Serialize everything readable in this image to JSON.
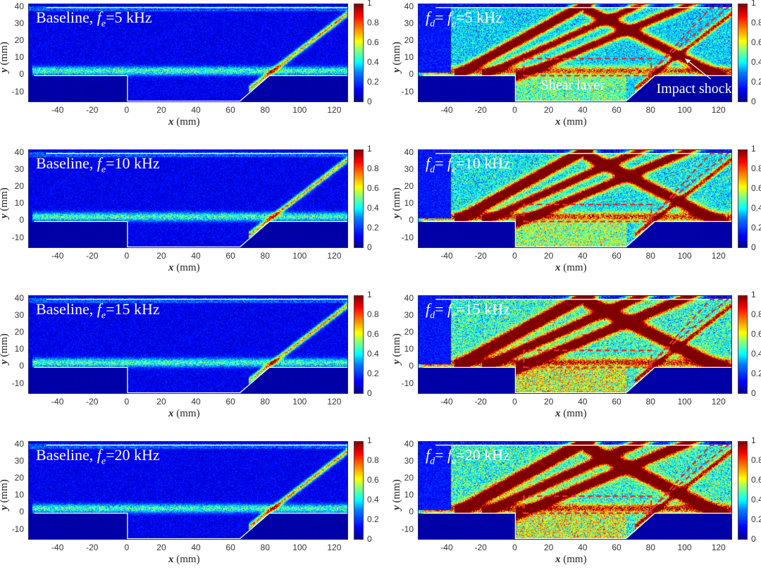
{
  "figure": {
    "colormap": "jet",
    "axis_colors": {
      "tick_text": "#333333",
      "geometry_line": "#ffffff",
      "box_line": "#e03030"
    }
  },
  "chart_data": [
    {
      "type": "heatmap",
      "id": "baseline-5",
      "title": "Baseline, f_e=5 kHz",
      "label_prefix": "Baseline, ",
      "label_var": "f",
      "label_sub": "e",
      "label_suffix": "=5 kHz",
      "variant": "baseline",
      "intensity": 0.35,
      "xlabel": "x (mm)",
      "ylabel": "y (mm)",
      "xlim": [
        -57,
        128
      ],
      "ylim": [
        -16,
        42
      ],
      "xticks": [
        -40,
        -20,
        0,
        20,
        40,
        60,
        80,
        100,
        120
      ],
      "yticks": [
        40,
        30,
        20,
        10,
        0,
        -10
      ],
      "colorbar": {
        "range": [
          0,
          1
        ],
        "ticks": [
          1,
          0.8,
          0.6,
          0.4,
          0.2,
          0
        ]
      }
    },
    {
      "type": "heatmap",
      "id": "forced-5",
      "title": "f_d = f_e=5 kHz",
      "label_prefix": "",
      "label_var": "f",
      "label_sub": "d",
      "label_suffix": "=5 kHz",
      "forced": true,
      "variant": "forced",
      "intensity": 0.75,
      "xlabel": "x (mm)",
      "ylabel": "y (mm)",
      "xlim": [
        -57,
        128
      ],
      "ylim": [
        -16,
        42
      ],
      "xticks": [
        -40,
        -20,
        0,
        20,
        40,
        60,
        80,
        100,
        120
      ],
      "yticks": [
        40,
        30,
        20,
        10,
        0,
        -10
      ],
      "colorbar": {
        "range": [
          0,
          1
        ],
        "ticks": [
          1,
          0.8,
          0.6,
          0.4,
          0.2,
          0
        ]
      },
      "annotations": [
        {
          "text": "Shear layer"
        },
        {
          "text": "Impact shock"
        }
      ]
    },
    {
      "type": "heatmap",
      "id": "baseline-10",
      "title": "Baseline, f_e=10 kHz",
      "label_prefix": "Baseline, ",
      "label_var": "f",
      "label_sub": "e",
      "label_suffix": "=10 kHz",
      "variant": "baseline",
      "intensity": 0.35,
      "xlabel": "x (mm)",
      "ylabel": "y (mm)",
      "xlim": [
        -57,
        128
      ],
      "ylim": [
        -16,
        42
      ],
      "xticks": [
        -40,
        -20,
        0,
        20,
        40,
        60,
        80,
        100,
        120
      ],
      "yticks": [
        40,
        30,
        20,
        10,
        0,
        -10
      ],
      "colorbar": {
        "range": [
          0,
          1
        ],
        "ticks": [
          1,
          0.8,
          0.6,
          0.4,
          0.2,
          0
        ]
      }
    },
    {
      "type": "heatmap",
      "id": "forced-10",
      "title": "f_d = f_e=10 kHz",
      "label_prefix": "",
      "label_var": "f",
      "label_sub": "d",
      "label_suffix": "=10 kHz",
      "forced": true,
      "variant": "forced",
      "intensity": 0.85,
      "xlabel": "x (mm)",
      "ylabel": "y (mm)",
      "xlim": [
        -57,
        128
      ],
      "ylim": [
        -16,
        42
      ],
      "xticks": [
        -40,
        -20,
        0,
        20,
        40,
        60,
        80,
        100,
        120
      ],
      "yticks": [
        40,
        30,
        20,
        10,
        0,
        -10
      ],
      "colorbar": {
        "range": [
          0,
          1
        ],
        "ticks": [
          1,
          0.8,
          0.6,
          0.4,
          0.2,
          0
        ]
      }
    },
    {
      "type": "heatmap",
      "id": "baseline-15",
      "title": "Baseline, f_e=15 kHz",
      "label_prefix": "Baseline, ",
      "label_var": "f",
      "label_sub": "e",
      "label_suffix": "=15 kHz",
      "variant": "baseline",
      "intensity": 0.3,
      "xlabel": "x (mm)",
      "ylabel": "y (mm)",
      "xlim": [
        -57,
        128
      ],
      "ylim": [
        -16,
        42
      ],
      "xticks": [
        -40,
        -20,
        0,
        20,
        40,
        60,
        80,
        100,
        120
      ],
      "yticks": [
        40,
        30,
        20,
        10,
        0,
        -10
      ],
      "colorbar": {
        "range": [
          0,
          1
        ],
        "ticks": [
          1,
          0.8,
          0.6,
          0.4,
          0.2,
          0
        ]
      }
    },
    {
      "type": "heatmap",
      "id": "forced-15",
      "title": "f_d = f_e=15 kHz",
      "label_prefix": "",
      "label_var": "f",
      "label_sub": "d",
      "label_suffix": "=15 kHz",
      "forced": true,
      "variant": "forced",
      "intensity": 1.0,
      "xlabel": "x (mm)",
      "ylabel": "y (mm)",
      "xlim": [
        -57,
        128
      ],
      "ylim": [
        -16,
        42
      ],
      "xticks": [
        -40,
        -20,
        0,
        20,
        40,
        60,
        80,
        100,
        120
      ],
      "yticks": [
        40,
        30,
        20,
        10,
        0,
        -10
      ],
      "colorbar": {
        "range": [
          0,
          1
        ],
        "ticks": [
          1,
          0.8,
          0.6,
          0.4,
          0.2,
          0
        ]
      }
    },
    {
      "type": "heatmap",
      "id": "baseline-20",
      "title": "Baseline, f_e=20 kHz",
      "label_prefix": "Baseline, ",
      "label_var": "f",
      "label_sub": "e",
      "label_suffix": "=20 kHz",
      "variant": "baseline",
      "intensity": 0.3,
      "xlabel": "x (mm)",
      "ylabel": "y (mm)",
      "xlim": [
        -57,
        128
      ],
      "ylim": [
        -16,
        42
      ],
      "xticks": [
        -40,
        -20,
        0,
        20,
        40,
        60,
        80,
        100,
        120
      ],
      "yticks": [
        40,
        30,
        20,
        10,
        0,
        -10
      ],
      "colorbar": {
        "range": [
          0,
          1
        ],
        "ticks": [
          1,
          0.8,
          0.6,
          0.4,
          0.2,
          0
        ]
      }
    },
    {
      "type": "heatmap",
      "id": "forced-20",
      "title": "f_d = f_e=20 kHz",
      "label_prefix": "",
      "label_var": "f",
      "label_sub": "d",
      "label_suffix": "=20 kHz",
      "forced": true,
      "variant": "forced",
      "intensity": 1.0,
      "xlabel": "x (mm)",
      "ylabel": "y (mm)",
      "xlim": [
        -57,
        128
      ],
      "ylim": [
        -16,
        42
      ],
      "xticks": [
        -40,
        -20,
        0,
        20,
        40,
        60,
        80,
        100,
        120
      ],
      "yticks": [
        40,
        30,
        20,
        10,
        0,
        -10
      ],
      "colorbar": {
        "range": [
          0,
          1
        ],
        "ticks": [
          1,
          0.8,
          0.6,
          0.4,
          0.2,
          0
        ]
      }
    }
  ],
  "geometry": {
    "wall_outline_mm": [
      [
        -54,
        0
      ],
      [
        0,
        0
      ],
      [
        0,
        -15
      ],
      [
        65,
        -15
      ],
      [
        82,
        0
      ],
      [
        128,
        0
      ]
    ],
    "top_wall_mm": [
      [
        -47,
        40
      ],
      [
        128,
        40
      ]
    ],
    "shear_box_mm": [
      [
        5,
        0
      ],
      [
        80,
        0
      ],
      [
        80,
        10
      ],
      [
        5,
        10
      ]
    ],
    "impact_box_mm": [
      [
        78,
        0
      ],
      [
        88,
        10
      ],
      [
        125,
        40
      ],
      [
        115,
        40
      ]
    ]
  }
}
